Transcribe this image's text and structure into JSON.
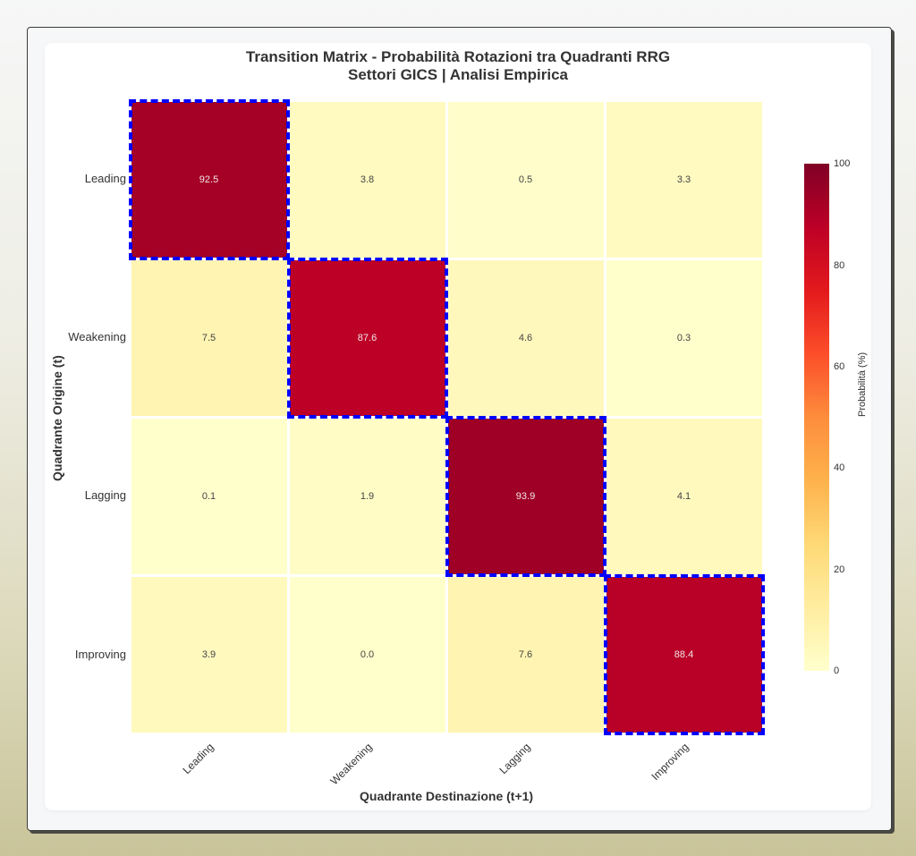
{
  "chart": {
    "title_line1": "Transition Matrix - Probabilità Rotazioni tra Quadranti RRG",
    "title_line2": "Settori GICS | Analisi Empirica",
    "xlabel": "Quadrante Destinazione (t+1)",
    "ylabel": "Quadrante Origine (t)",
    "colorbar_label": "Probabilità (%)",
    "colorbar_ticks": [
      "100",
      "80",
      "60",
      "40",
      "20",
      "0"
    ],
    "row_labels": [
      "Leading",
      "Weakening",
      "Lagging",
      "Improving"
    ],
    "col_labels": [
      "Leading",
      "Weakening",
      "Lagging",
      "Improving"
    ],
    "cells": [
      [
        "92.5",
        "3.8",
        "0.5",
        "3.3"
      ],
      [
        "7.5",
        "87.6",
        "4.6",
        "0.3"
      ],
      [
        "0.1",
        "1.9",
        "93.9",
        "4.1"
      ],
      [
        "3.9",
        "0.0",
        "7.6",
        "88.4"
      ]
    ],
    "highlight_color": "#0000ff",
    "colormap": "YlOrRd"
  },
  "chart_data": {
    "type": "heatmap",
    "title": "Transition Matrix - Probabilità Rotazioni tra Quadranti RRG\nSettori GICS | Analisi Empirica",
    "xlabel": "Quadrante Destinazione (t+1)",
    "ylabel": "Quadrante Origine (t)",
    "x_categories": [
      "Leading",
      "Weakening",
      "Lagging",
      "Improving"
    ],
    "y_categories": [
      "Leading",
      "Weakening",
      "Lagging",
      "Improving"
    ],
    "values": [
      [
        92.5,
        3.8,
        0.5,
        3.3
      ],
      [
        7.5,
        87.6,
        4.6,
        0.3
      ],
      [
        0.1,
        1.9,
        93.9,
        4.1
      ],
      [
        3.9,
        0.0,
        7.6,
        88.4
      ]
    ],
    "colorbar": {
      "label": "Probabilità (%)",
      "range": [
        0,
        100
      ],
      "ticks": [
        0,
        20,
        40,
        60,
        80,
        100
      ],
      "colormap": "YlOrRd"
    },
    "annotations": "Diagonal cells highlighted with blue dashed borders"
  }
}
